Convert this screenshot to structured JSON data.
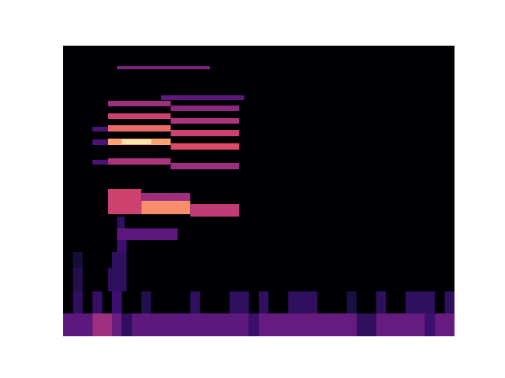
{
  "chart_data": {
    "type": "heatmap",
    "tick_labels": false,
    "xlim": [
      0,
      40
    ],
    "ylim": [
      0,
      369
    ],
    "color": "magma",
    "color_range": [
      0,
      1
    ],
    "cells": [
      {
        "x": [
          0,
          3
        ],
        "y": [
          0,
          29
        ],
        "value": 0.35
      },
      {
        "x": [
          3,
          5
        ],
        "y": [
          0,
          29
        ],
        "value": 0.55
      },
      {
        "x": [
          5,
          6
        ],
        "y": [
          0,
          29
        ],
        "value": 0.4
      },
      {
        "x": [
          6,
          7
        ],
        "y": [
          0,
          29
        ],
        "value": 0.2
      },
      {
        "x": [
          7,
          19
        ],
        "y": [
          0,
          29
        ],
        "value": 0.35
      },
      {
        "x": [
          19,
          20
        ],
        "y": [
          0,
          29
        ],
        "value": 0.25
      },
      {
        "x": [
          20,
          30
        ],
        "y": [
          0,
          29
        ],
        "value": 0.38
      },
      {
        "x": [
          30,
          32
        ],
        "y": [
          0,
          29
        ],
        "value": 0.2
      },
      {
        "x": [
          32,
          37
        ],
        "y": [
          0,
          29
        ],
        "value": 0.38
      },
      {
        "x": [
          37,
          38
        ],
        "y": [
          0,
          29
        ],
        "value": 0.25
      },
      {
        "x": [
          38,
          40
        ],
        "y": [
          0,
          29
        ],
        "value": 0.38
      },
      {
        "x": [
          1,
          2
        ],
        "y": [
          29,
          57
        ],
        "value": 0.2
      },
      {
        "x": [
          3,
          4
        ],
        "y": [
          29,
          57
        ],
        "value": 0.22
      },
      {
        "x": [
          5,
          6
        ],
        "y": [
          29,
          57
        ],
        "value": 0.25
      },
      {
        "x": [
          8,
          9
        ],
        "y": [
          29,
          57
        ],
        "value": 0.15
      },
      {
        "x": [
          13,
          14
        ],
        "y": [
          29,
          57
        ],
        "value": 0.2
      },
      {
        "x": [
          17,
          19
        ],
        "y": [
          29,
          57
        ],
        "value": 0.2
      },
      {
        "x": [
          20,
          21
        ],
        "y": [
          29,
          57
        ],
        "value": 0.2
      },
      {
        "x": [
          23,
          26
        ],
        "y": [
          29,
          57
        ],
        "value": 0.2
      },
      {
        "x": [
          29,
          30
        ],
        "y": [
          29,
          57
        ],
        "value": 0.12
      },
      {
        "x": [
          32,
          33
        ],
        "y": [
          29,
          57
        ],
        "value": 0.2
      },
      {
        "x": [
          35,
          38
        ],
        "y": [
          29,
          57
        ],
        "value": 0.2
      },
      {
        "x": [
          39,
          40
        ],
        "y": [
          29,
          57
        ],
        "value": 0.2
      },
      {
        "x": [
          1,
          2
        ],
        "y": [
          57,
          87
        ],
        "value": 0.15
      },
      {
        "x": [
          4.6,
          6.5
        ],
        "y": [
          57,
          87
        ],
        "value": 0.2
      },
      {
        "x": [
          1,
          2
        ],
        "y": [
          87,
          107
        ],
        "value": 0.1
      },
      {
        "x": [
          5,
          6.5
        ],
        "y": [
          87,
          107
        ],
        "value": 0.2
      },
      {
        "x": [
          5.5,
          6.5
        ],
        "y": [
          107,
          122
        ],
        "value": 0.25
      },
      {
        "x": [
          5.5,
          11.7
        ],
        "y": [
          122,
          137
        ],
        "value": 0.35
      },
      {
        "x": [
          5.5,
          6.3
        ],
        "y": [
          137,
          152
        ],
        "value": 0.2
      },
      {
        "x": [
          4.6,
          8
        ],
        "y": [
          155,
          187
        ],
        "value": 0.7
      },
      {
        "x": [
          8,
          13
        ],
        "y": [
          155,
          172
        ],
        "value": 0.85
      },
      {
        "x": [
          8,
          13
        ],
        "y": [
          172,
          182
        ],
        "value": 0.55
      },
      {
        "x": [
          13,
          18
        ],
        "y": [
          152,
          168
        ],
        "value": 0.65
      },
      {
        "x": [
          3,
          4.6
        ],
        "y": [
          218,
          224
        ],
        "value": 0.3
      },
      {
        "x": [
          3,
          4.6
        ],
        "y": [
          243,
          250
        ],
        "value": 0.3
      },
      {
        "x": [
          3,
          4.6
        ],
        "y": [
          260,
          266
        ],
        "value": 0.3
      },
      {
        "x": [
          4.6,
          11
        ],
        "y": [
          218,
          226
        ],
        "value": 0.6
      },
      {
        "x": [
          11,
          18
        ],
        "y": [
          212,
          220
        ],
        "value": 0.55
      },
      {
        "x": [
          4.6,
          11
        ],
        "y": [
          243,
          251
        ],
        "value": 0.88
      },
      {
        "x": [
          11,
          18
        ],
        "y": [
          237,
          245
        ],
        "value": 0.75
      },
      {
        "x": [
          6,
          9
        ],
        "y": [
          244,
          250
        ],
        "value": 0.97
      },
      {
        "x": [
          4.6,
          11
        ],
        "y": [
          260,
          268
        ],
        "value": 0.8
      },
      {
        "x": [
          11,
          18
        ],
        "y": [
          254,
          262
        ],
        "value": 0.7
      },
      {
        "x": [
          4.6,
          11
        ],
        "y": [
          276,
          283
        ],
        "value": 0.7
      },
      {
        "x": [
          11,
          18
        ],
        "y": [
          270,
          277
        ],
        "value": 0.6
      },
      {
        "x": [
          4.6,
          11
        ],
        "y": [
          292,
          299
        ],
        "value": 0.55
      },
      {
        "x": [
          11,
          18
        ],
        "y": [
          286,
          293
        ],
        "value": 0.5
      },
      {
        "x": [
          10,
          18.5
        ],
        "y": [
          300,
          306
        ],
        "value": 0.35
      },
      {
        "x": [
          5.5,
          15
        ],
        "y": [
          339,
          343
        ],
        "value": 0.45
      }
    ]
  }
}
